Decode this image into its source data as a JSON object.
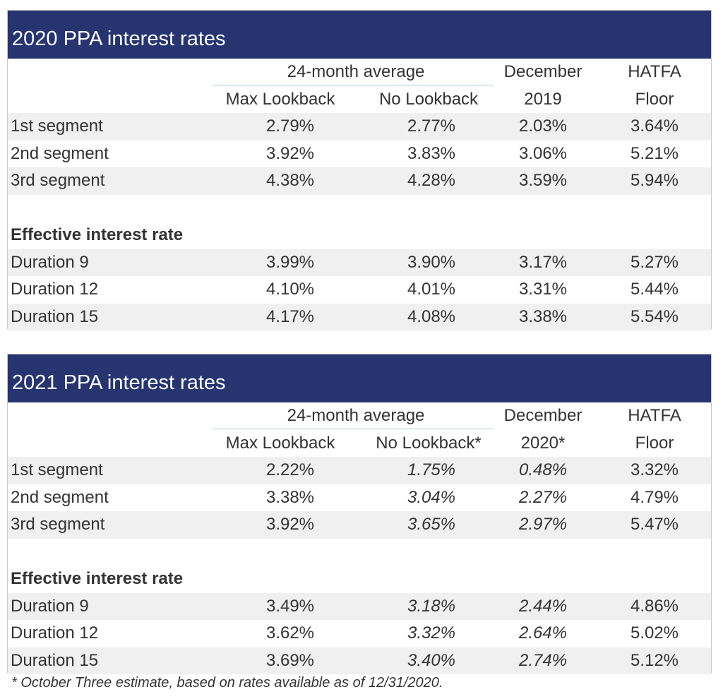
{
  "tables": [
    {
      "title": "2020 PPA interest rates",
      "header": {
        "group": "24-month average",
        "max_lookback": "Max Lookback",
        "no_lookback": "No Lookback",
        "col3_line1": "December",
        "col3_line2": "2019",
        "col4_line1": "HATFA",
        "col4_line2": "Floor"
      },
      "segments": [
        {
          "label": "1st segment",
          "values": [
            "2.79%",
            "2.77%",
            "2.03%",
            "3.64%"
          ]
        },
        {
          "label": "2nd segment",
          "values": [
            "3.92%",
            "3.83%",
            "3.06%",
            "5.21%"
          ]
        },
        {
          "label": "3rd segment",
          "values": [
            "4.38%",
            "4.28%",
            "3.59%",
            "5.94%"
          ]
        }
      ],
      "effective_heading": "Effective interest rate",
      "durations": [
        {
          "label": "Duration 9",
          "values": [
            "3.99%",
            "3.90%",
            "3.17%",
            "5.27%"
          ]
        },
        {
          "label": "Duration 12",
          "values": [
            "4.10%",
            "4.01%",
            "3.31%",
            "5.44%"
          ]
        },
        {
          "label": "Duration 15",
          "values": [
            "4.17%",
            "4.08%",
            "3.38%",
            "5.54%"
          ]
        }
      ]
    },
    {
      "title": "2021 PPA interest rates",
      "header": {
        "group": "24-month average",
        "max_lookback": "Max Lookback",
        "no_lookback": "No Lookback*",
        "col3_line1": "December",
        "col3_line2": "2020*",
        "col4_line1": "HATFA",
        "col4_line2": "Floor"
      },
      "segments": [
        {
          "label": "1st segment",
          "values": [
            "2.22%",
            "1.75%",
            "0.48%",
            "3.32%"
          ]
        },
        {
          "label": "2nd segment",
          "values": [
            "3.38%",
            "3.04%",
            "2.27%",
            "4.79%"
          ]
        },
        {
          "label": "3rd segment",
          "values": [
            "3.92%",
            "3.65%",
            "2.97%",
            "5.47%"
          ]
        }
      ],
      "effective_heading": "Effective interest rate",
      "durations": [
        {
          "label": "Duration 9",
          "values": [
            "3.49%",
            "3.18%",
            "2.44%",
            "4.86%"
          ]
        },
        {
          "label": "Duration 12",
          "values": [
            "3.62%",
            "3.32%",
            "2.64%",
            "5.02%"
          ]
        },
        {
          "label": "Duration 15",
          "values": [
            "3.69%",
            "3.40%",
            "2.74%",
            "5.12%"
          ]
        }
      ]
    }
  ],
  "footnote": "* October Three estimate, based on rates available as of 12/31/2020."
}
